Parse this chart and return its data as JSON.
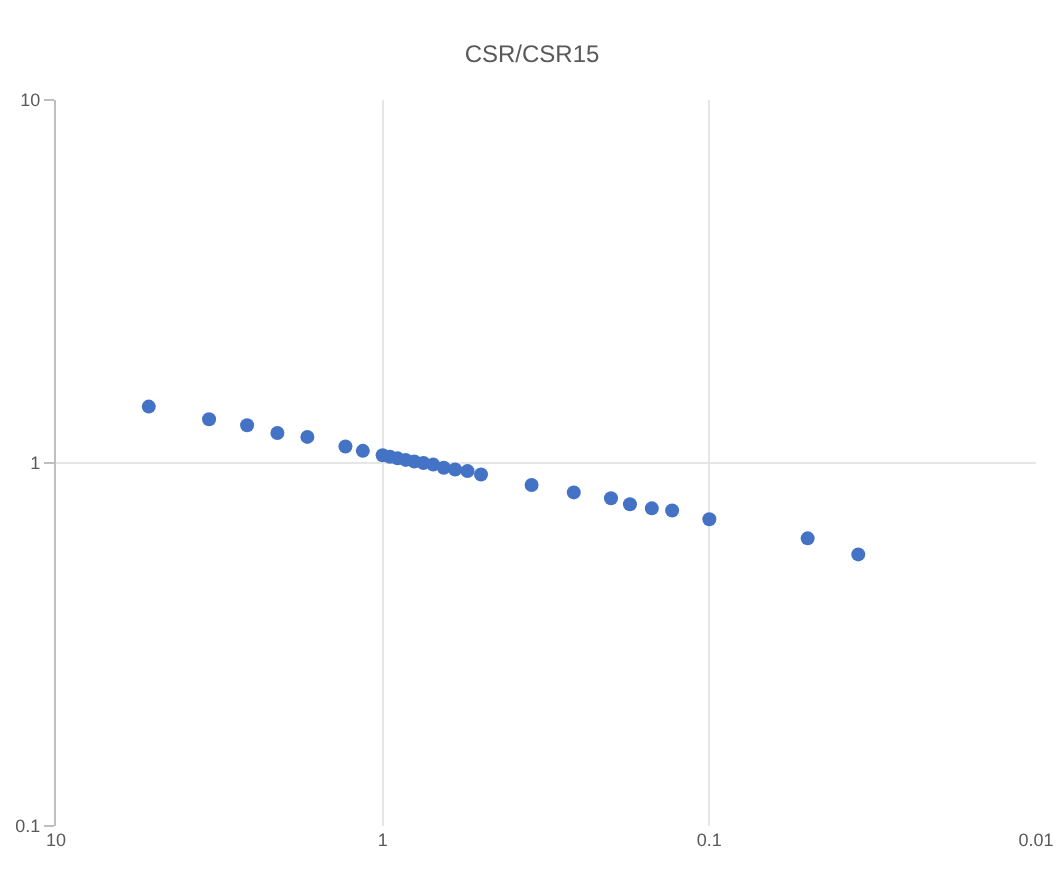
{
  "chart_data": {
    "type": "scatter",
    "title": "CSR/CSR15",
    "x": [
      5.2,
      3.4,
      2.6,
      2.1,
      1.7,
      1.3,
      1.15,
      1.0,
      0.95,
      0.9,
      0.85,
      0.8,
      0.75,
      0.7,
      0.65,
      0.6,
      0.55,
      0.5,
      0.35,
      0.26,
      0.2,
      0.175,
      0.15,
      0.13,
      0.1,
      0.05,
      0.035
    ],
    "series": [
      {
        "color": "#4472c4",
        "values": [
          1.43,
          1.32,
          1.27,
          1.21,
          1.18,
          1.11,
          1.08,
          1.05,
          1.04,
          1.03,
          1.02,
          1.01,
          1.0,
          0.99,
          0.97,
          0.96,
          0.95,
          0.93,
          0.87,
          0.83,
          0.8,
          0.77,
          0.75,
          0.74,
          0.7,
          0.62,
          0.56
        ]
      }
    ],
    "xlim": [
      10,
      0.01
    ],
    "ylim": [
      0.1,
      10
    ],
    "xticks": [
      10,
      1,
      0.1,
      0.01
    ],
    "yticks": [
      0.1,
      1,
      10
    ],
    "log": "xy",
    "grid": true,
    "marker": "circle"
  }
}
